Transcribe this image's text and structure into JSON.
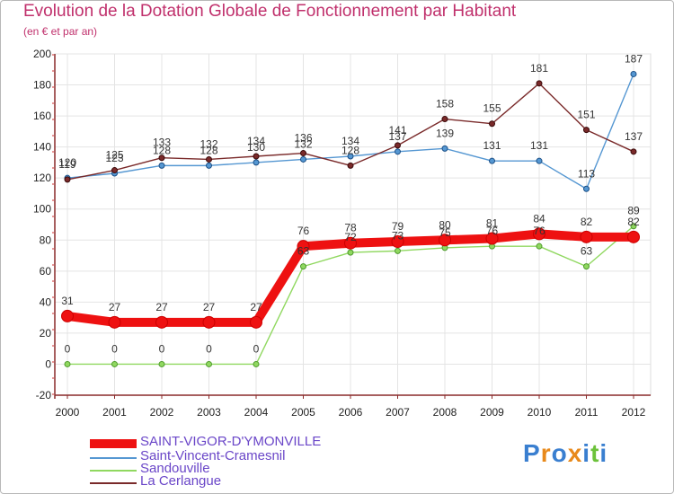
{
  "title": "Evolution de la Dotation Globale de Fonctionnement par Habitant",
  "subtitle": "(en € et par an)",
  "logo_text": "Proxiti",
  "colors": {
    "title": "#c0306c",
    "axis": "#8a2a2a",
    "grid": "#e4e4e4",
    "legend_text": "#6a46c8"
  },
  "chart_data": {
    "type": "line",
    "x": [
      "2000",
      "2001",
      "2002",
      "2003",
      "2004",
      "2005",
      "2006",
      "2007",
      "2008",
      "2009",
      "2010",
      "2011",
      "2012"
    ],
    "ylim": [
      -20,
      200
    ],
    "yticks": [
      -20,
      0,
      20,
      40,
      60,
      80,
      100,
      120,
      140,
      160,
      180,
      200
    ],
    "grid": true,
    "legend_position": "bottom-left",
    "series": [
      {
        "name": "SAINT-VIGOR-D'YMONVILLE",
        "color": "#ee1111",
        "values": [
          31,
          27,
          27,
          27,
          27,
          76,
          78,
          79,
          80,
          81,
          84,
          82,
          82
        ]
      },
      {
        "name": "Saint-Vincent-Cramesnil",
        "color": "#5597d2",
        "values": [
          120,
          123,
          128,
          128,
          130,
          132,
          134,
          137,
          139,
          131,
          131,
          113,
          187
        ]
      },
      {
        "name": "Sandouville",
        "color": "#90d860",
        "values": [
          0,
          0,
          0,
          0,
          0,
          63,
          72,
          73,
          75,
          76,
          76,
          63,
          89
        ]
      },
      {
        "name": "La Cerlangue",
        "color": "#7a2a2a",
        "values": [
          119,
          125,
          133,
          132,
          134,
          136,
          128,
          141,
          158,
          155,
          181,
          151,
          137
        ]
      }
    ],
    "data_labels": [
      [
        "31",
        "27",
        "27",
        "27",
        "27",
        "76",
        "78",
        "79",
        "80",
        "81",
        "84",
        "82",
        "82"
      ],
      [
        "120",
        "123",
        "128",
        "128",
        "130",
        "132",
        "134",
        "137",
        "139",
        "131",
        "131",
        "113",
        "187"
      ],
      [
        "0",
        "0",
        "0",
        "0",
        "0",
        "63",
        "72",
        "73",
        "75",
        "76",
        "76",
        "63",
        "89"
      ],
      [
        "119",
        "125",
        "133",
        "132",
        "134",
        "136",
        "128",
        "141",
        "158",
        "155",
        "181",
        "151",
        "137"
      ]
    ]
  }
}
